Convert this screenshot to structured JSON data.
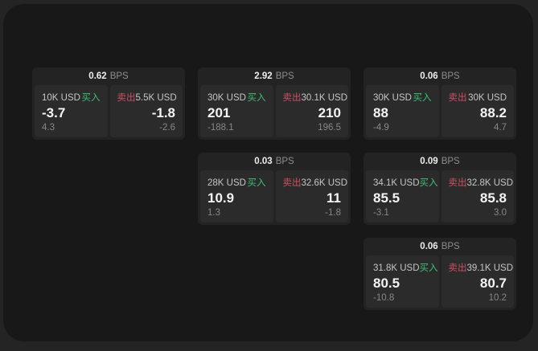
{
  "labels": {
    "bps_unit": "BPS",
    "buy": "买入",
    "sell": "卖出"
  },
  "colors": {
    "buy_accent": "#3fbf77",
    "sell_accent": "#cf4f63",
    "panel_bg": "#181818",
    "card_bg": "#232323",
    "subpanel_bg": "#2b2b2b"
  },
  "cards": [
    {
      "bps": "0.62",
      "col": 1,
      "row": 1,
      "buy": {
        "size": "10K USD",
        "value": "-3.7",
        "delta": "4.3"
      },
      "sell": {
        "size": "5.5K USD",
        "value": "-1.8",
        "delta": "-2.6"
      }
    },
    {
      "bps": "2.92",
      "col": 2,
      "row": 1,
      "buy": {
        "size": "30K USD",
        "value": "201",
        "delta": "-188.1"
      },
      "sell": {
        "size": "30.1K USD",
        "value": "210",
        "delta": "196.5"
      }
    },
    {
      "bps": "0.06",
      "col": 3,
      "row": 1,
      "buy": {
        "size": "30K USD",
        "value": "88",
        "delta": "-4.9"
      },
      "sell": {
        "size": "30K USD",
        "value": "88.2",
        "delta": "4.7"
      }
    },
    {
      "bps": "0.03",
      "col": 2,
      "row": 2,
      "buy": {
        "size": "28K USD",
        "value": "10.9",
        "delta": "1.3"
      },
      "sell": {
        "size": "32.6K USD",
        "value": "11",
        "delta": "-1.8"
      }
    },
    {
      "bps": "0.09",
      "col": 3,
      "row": 2,
      "buy": {
        "size": "34.1K USD",
        "value": "85.5",
        "delta": "-3.1"
      },
      "sell": {
        "size": "32.8K USD",
        "value": "85.8",
        "delta": "3.0"
      }
    },
    {
      "bps": "0.06",
      "col": 3,
      "row": 3,
      "buy": {
        "size": "31.8K USD",
        "value": "80.5",
        "delta": "-10.8"
      },
      "sell": {
        "size": "39.1K USD",
        "value": "80.7",
        "delta": "10.2"
      }
    }
  ]
}
